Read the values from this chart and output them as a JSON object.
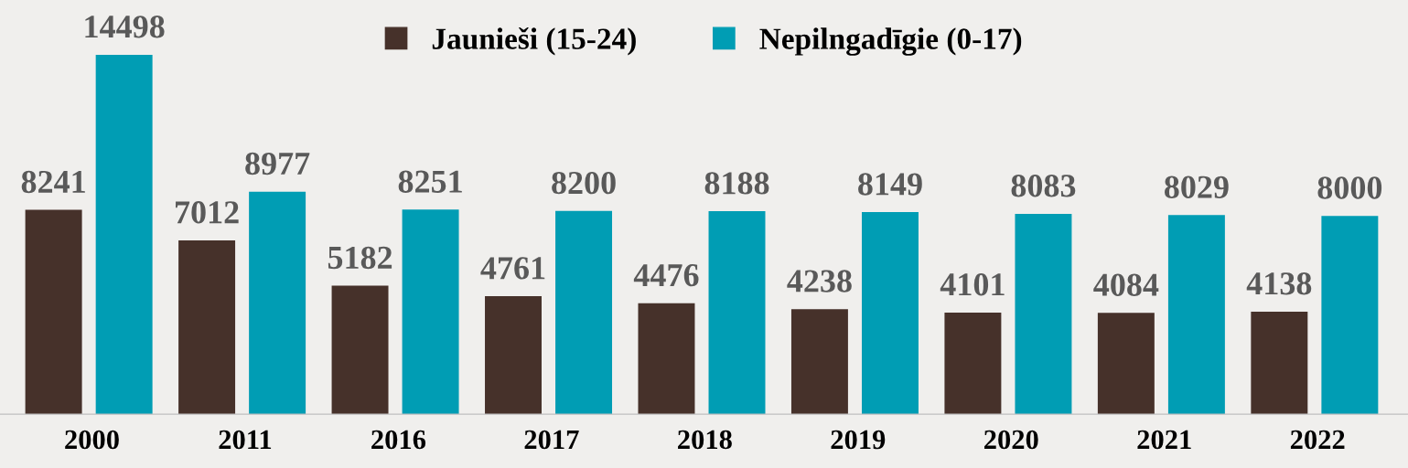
{
  "chart_data": {
    "type": "bar",
    "categories": [
      "2000",
      "2011",
      "2016",
      "2017",
      "2018",
      "2019",
      "2020",
      "2021",
      "2022"
    ],
    "series": [
      {
        "name": "Jaunieši (15-24)",
        "color": "#46312a",
        "values": [
          8241,
          7012,
          5182,
          4761,
          4476,
          4238,
          4101,
          4084,
          4138
        ]
      },
      {
        "name": "Nepilngadīgie (0-17)",
        "color": "#009db4",
        "values": [
          14498,
          8977,
          8251,
          8200,
          8188,
          8149,
          8083,
          8029,
          8000
        ]
      }
    ],
    "data_labels": true,
    "legend": "top",
    "tick_labels": "x"
  }
}
